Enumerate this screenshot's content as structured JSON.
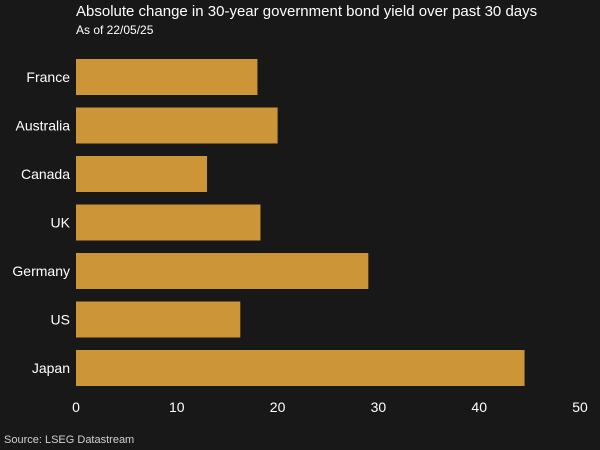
{
  "chart_data": {
    "type": "bar",
    "orientation": "horizontal",
    "title": "Absolute change in 30-year government bond yield over past 30 days",
    "subtitle": "As of 22/05/25",
    "source": "Source: LSEG Datastream",
    "categories": [
      "France",
      "Australia",
      "Canada",
      "UK",
      "Germany",
      "US",
      "Japan"
    ],
    "values": [
      18,
      20,
      13,
      18.3,
      29,
      16.3,
      44.5
    ],
    "xlim": [
      0,
      50
    ],
    "xticks": [
      0,
      10,
      20,
      30,
      40,
      50
    ],
    "xtick_labels": [
      "0",
      "10",
      "20",
      "30",
      "40",
      "50"
    ],
    "grid": false,
    "bar_color": "#cc9538",
    "background_color": "#181818"
  }
}
